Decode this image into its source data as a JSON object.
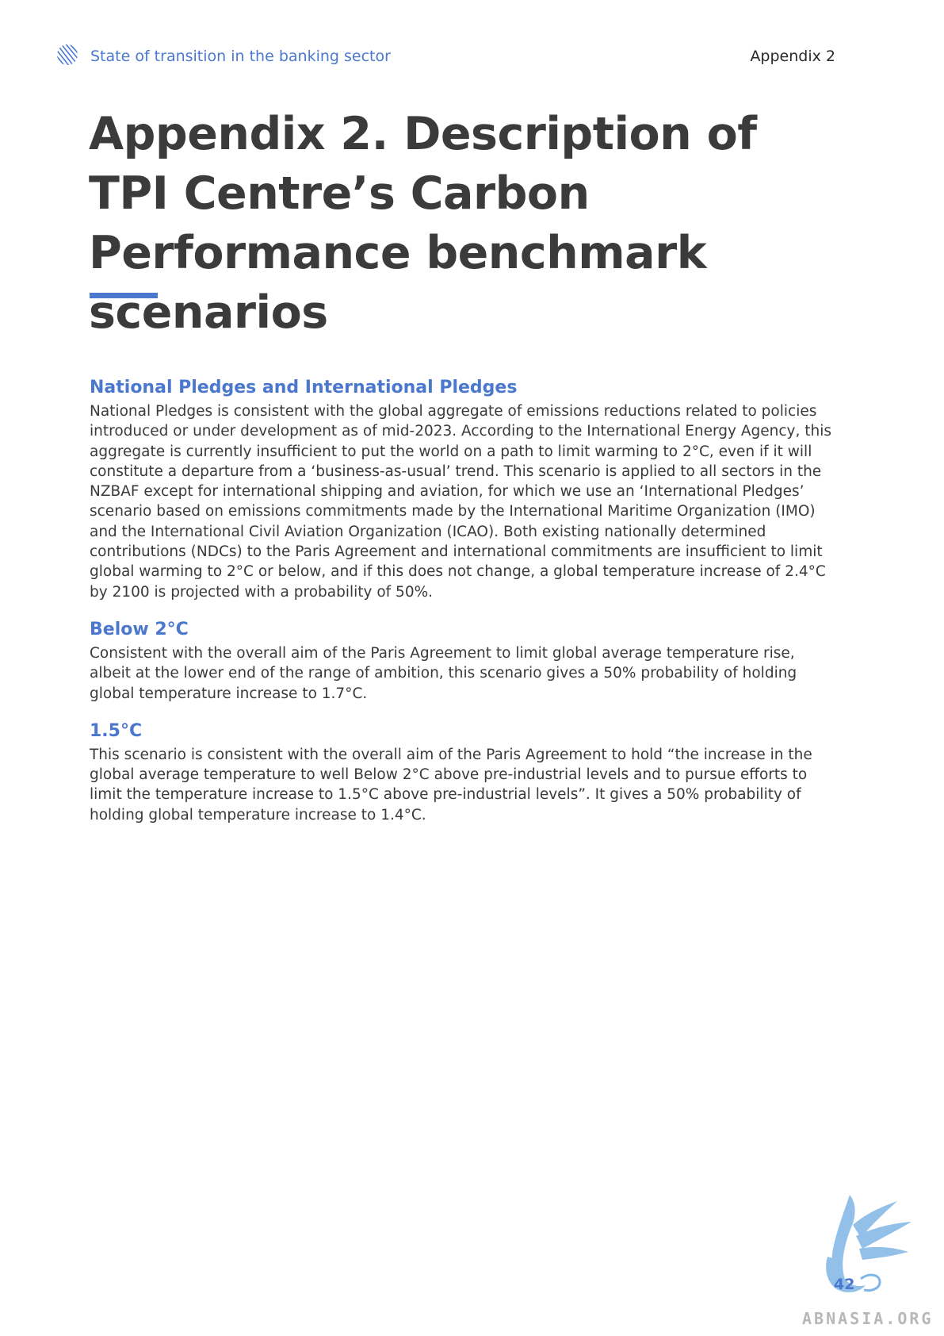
{
  "header": {
    "logo_icon": "striped-circle-logo-icon",
    "title": "State of transition in the banking sector",
    "section": "Appendix 2"
  },
  "page": {
    "title": "Appendix 2. Description of TPI Centre’s Carbon Performance benchmark scenarios"
  },
  "sections": [
    {
      "heading": "National Pledges and International Pledges",
      "body": "National Pledges is consistent with the global aggregate of emissions reductions related to policies introduced or under development as of mid-2023. According to the International Energy Agency, this aggregate is currently insufficient to put the world on a path to limit warming to 2°C, even if it will constitute a departure from a ‘business-as-usual’ trend. This scenario is applied to all sectors in the NZBAF except for international shipping and aviation, for which we use an ‘International Pledges’ scenario based on emissions commitments made by the International Maritime Organization (IMO) and the International Civil Aviation Organization (ICAO). Both existing nationally determined contributions (NDCs) to the Paris Agreement and international commitments are insufficient to limit global warming to 2°C or below, and if this does not change, a global temperature increase of 2.4°C by 2100 is projected with a probability of 50%."
    },
    {
      "heading": "Below 2°C",
      "body": "Consistent with the overall aim of the Paris Agreement to limit global average temperature rise, albeit at the lower end of the range of ambition, this scenario gives a 50% probability of holding global temperature increase to 1.7°C."
    },
    {
      "heading": "1.5°C",
      "body": "This scenario is consistent with the overall aim of the Paris Agreement to hold “the increase in the global average temperature to well Below 2°C above pre-industrial levels and to pursue efforts to limit the temperature increase to 1.5°C above pre-industrial levels”. It gives a 50% probability of holding global temperature increase to 1.4°C."
    }
  ],
  "footer": {
    "page_number": "42",
    "watermark_icon": "griffin-watermark-icon",
    "watermark_text": "ABNASIA.ORG"
  },
  "colors": {
    "accent": "#4b78cf",
    "body_text": "#3a3a3a",
    "watermark": "#7fb6e6"
  }
}
